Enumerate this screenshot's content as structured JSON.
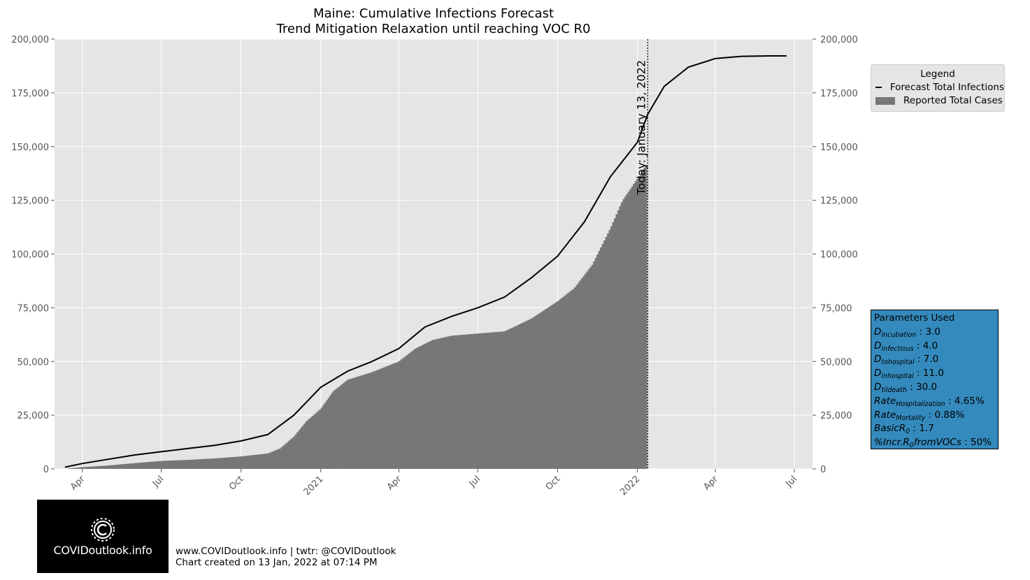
{
  "colors": {
    "plot_background": "#e5e5e5",
    "grid": "#ffffff",
    "bars": "#777777",
    "forecast_line": "#000000",
    "params_box": "#348abd"
  },
  "legend": {
    "title": "Legend",
    "entries": [
      "Forecast Total Infections",
      "Reported Total Cases"
    ]
  },
  "params": {
    "title": "Parameters Used",
    "rows": [
      {
        "name": "D",
        "sub": "incubation",
        "value": "3.0"
      },
      {
        "name": "D",
        "sub": "infectious",
        "value": "4.0"
      },
      {
        "name": "D",
        "sub": "tohospital",
        "value": "7.0"
      },
      {
        "name": "D",
        "sub": "inhospital",
        "value": "11.0"
      },
      {
        "name": "D",
        "sub": "tildeath",
        "value": "30.0"
      },
      {
        "name": "Rate",
        "sub": "Hospitalization",
        "value": "4.65%"
      },
      {
        "name": "Rate",
        "sub": "Mortality",
        "value": "0.88%"
      },
      {
        "name": "BasicR",
        "sub": "0",
        "value": "1.7"
      },
      {
        "name": "%Incr.R",
        "sub": "0",
        "suffix": "fromVOCs",
        "value": "50%"
      }
    ]
  },
  "logo_text": "COVIDoutlook.info",
  "credits": {
    "line1": "www.COVIDoutlook.info | twtr: @COVIDoutlook",
    "line2": "Chart created on 13 Jan, 2022 at 07:14 PM"
  },
  "chart_data": {
    "type": "bar",
    "title": "Maine: Cumulative Infections Forecast",
    "subtitle": "Trend Mitigation Relaxation until reaching VOC R0",
    "xlabel": "",
    "ylabel": "",
    "ylim": [
      0,
      200000
    ],
    "yticks": [
      0,
      25000,
      50000,
      75000,
      100000,
      125000,
      150000,
      175000,
      200000
    ],
    "ytick_labels": [
      "0",
      "25,000",
      "50,000",
      "75,000",
      "100,000",
      "125,000",
      "150,000",
      "175,000",
      "200,000"
    ],
    "x_range": [
      "2020-02-29",
      "2022-07-22"
    ],
    "xticks": [
      "2020-04-01",
      "2020-07-01",
      "2020-10-01",
      "2021-01-01",
      "2021-04-01",
      "2021-07-01",
      "2021-10-01",
      "2022-01-01",
      "2022-04-01",
      "2022-07-01"
    ],
    "xtick_labels": [
      "Apr",
      "Jul",
      "Oct",
      "2021",
      "Apr",
      "Jul",
      "Oct",
      "2022",
      "Apr",
      "Jul"
    ],
    "grid": true,
    "legend_position": "outside-right",
    "today_marker": {
      "date": "2022-01-13",
      "label": "Today: January 13, 2022"
    },
    "series": [
      {
        "name": "Reported Total Cases",
        "kind": "bar",
        "bar_interval_days": 2,
        "points": [
          [
            "2020-03-12",
            0
          ],
          [
            "2020-04-01",
            800
          ],
          [
            "2020-05-01",
            1600
          ],
          [
            "2020-06-01",
            2700
          ],
          [
            "2020-07-01",
            3700
          ],
          [
            "2020-08-01",
            4200
          ],
          [
            "2020-09-01",
            4900
          ],
          [
            "2020-10-01",
            5800
          ],
          [
            "2020-11-01",
            7200
          ],
          [
            "2020-11-15",
            9500
          ],
          [
            "2020-12-01",
            15000
          ],
          [
            "2020-12-15",
            22000
          ],
          [
            "2021-01-01",
            28000
          ],
          [
            "2021-01-15",
            36000
          ],
          [
            "2021-02-01",
            41500
          ],
          [
            "2021-03-01",
            45000
          ],
          [
            "2021-04-01",
            50000
          ],
          [
            "2021-04-20",
            56000
          ],
          [
            "2021-05-10",
            60000
          ],
          [
            "2021-06-01",
            62000
          ],
          [
            "2021-07-01",
            63000
          ],
          [
            "2021-08-01",
            64000
          ],
          [
            "2021-09-01",
            70000
          ],
          [
            "2021-10-01",
            78000
          ],
          [
            "2021-10-20",
            84000
          ],
          [
            "2021-11-10",
            95000
          ],
          [
            "2021-12-01",
            112000
          ],
          [
            "2021-12-15",
            125000
          ],
          [
            "2022-01-01",
            135000
          ],
          [
            "2022-01-12",
            142000
          ]
        ]
      },
      {
        "name": "Forecast Total Infections",
        "kind": "line",
        "points": [
          [
            "2020-03-12",
            800
          ],
          [
            "2020-04-01",
            2500
          ],
          [
            "2020-05-01",
            4500
          ],
          [
            "2020-06-01",
            6500
          ],
          [
            "2020-07-01",
            8000
          ],
          [
            "2020-08-01",
            9500
          ],
          [
            "2020-09-01",
            11000
          ],
          [
            "2020-10-01",
            13000
          ],
          [
            "2020-11-01",
            16000
          ],
          [
            "2020-12-01",
            25000
          ],
          [
            "2021-01-01",
            38000
          ],
          [
            "2021-02-01",
            45500
          ],
          [
            "2021-03-01",
            50000
          ],
          [
            "2021-04-01",
            56000
          ],
          [
            "2021-05-01",
            66000
          ],
          [
            "2021-06-01",
            71000
          ],
          [
            "2021-07-01",
            75000
          ],
          [
            "2021-08-01",
            80000
          ],
          [
            "2021-09-01",
            89000
          ],
          [
            "2021-10-01",
            99000
          ],
          [
            "2021-11-01",
            115000
          ],
          [
            "2021-12-01",
            136000
          ],
          [
            "2022-01-01",
            152000
          ],
          [
            "2022-01-13",
            165000
          ],
          [
            "2022-02-01",
            178000
          ],
          [
            "2022-03-01",
            187000
          ],
          [
            "2022-04-01",
            191000
          ],
          [
            "2022-05-01",
            192000
          ],
          [
            "2022-06-01",
            192200
          ],
          [
            "2022-06-22",
            192200
          ]
        ]
      }
    ]
  }
}
